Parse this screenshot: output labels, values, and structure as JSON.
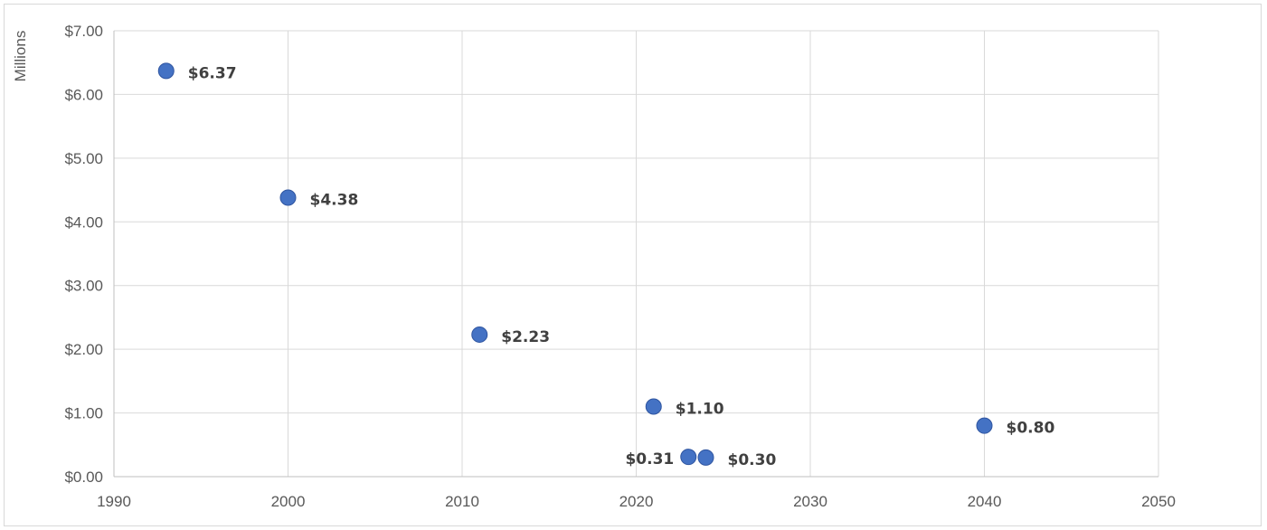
{
  "chart_data": {
    "type": "scatter",
    "ylabel": "Millions",
    "xlabel": "",
    "xlim": [
      1990,
      2050
    ],
    "ylim": [
      0,
      7
    ],
    "x_ticks": [
      "1990",
      "2000",
      "2010",
      "2020",
      "2030",
      "2040",
      "2050"
    ],
    "y_ticks": [
      "$0.00",
      "$1.00",
      "$2.00",
      "$3.00",
      "$4.00",
      "$5.00",
      "$6.00",
      "$7.00"
    ],
    "grid": true,
    "legend": "none",
    "marker_color": "#4472c4",
    "points": [
      {
        "x": 1993,
        "y": 6.37,
        "label": "$6.37",
        "label_side": "right"
      },
      {
        "x": 2000,
        "y": 4.38,
        "label": "$4.38",
        "label_side": "right"
      },
      {
        "x": 2011,
        "y": 2.23,
        "label": "$2.23",
        "label_side": "right"
      },
      {
        "x": 2021,
        "y": 1.1,
        "label": "$1.10",
        "label_side": "right"
      },
      {
        "x": 2023,
        "y": 0.31,
        "label": "$0.31",
        "label_side": "left"
      },
      {
        "x": 2024,
        "y": 0.3,
        "label": "$0.30",
        "label_side": "right"
      },
      {
        "x": 2040,
        "y": 0.8,
        "label": "$0.80",
        "label_side": "right"
      }
    ]
  }
}
